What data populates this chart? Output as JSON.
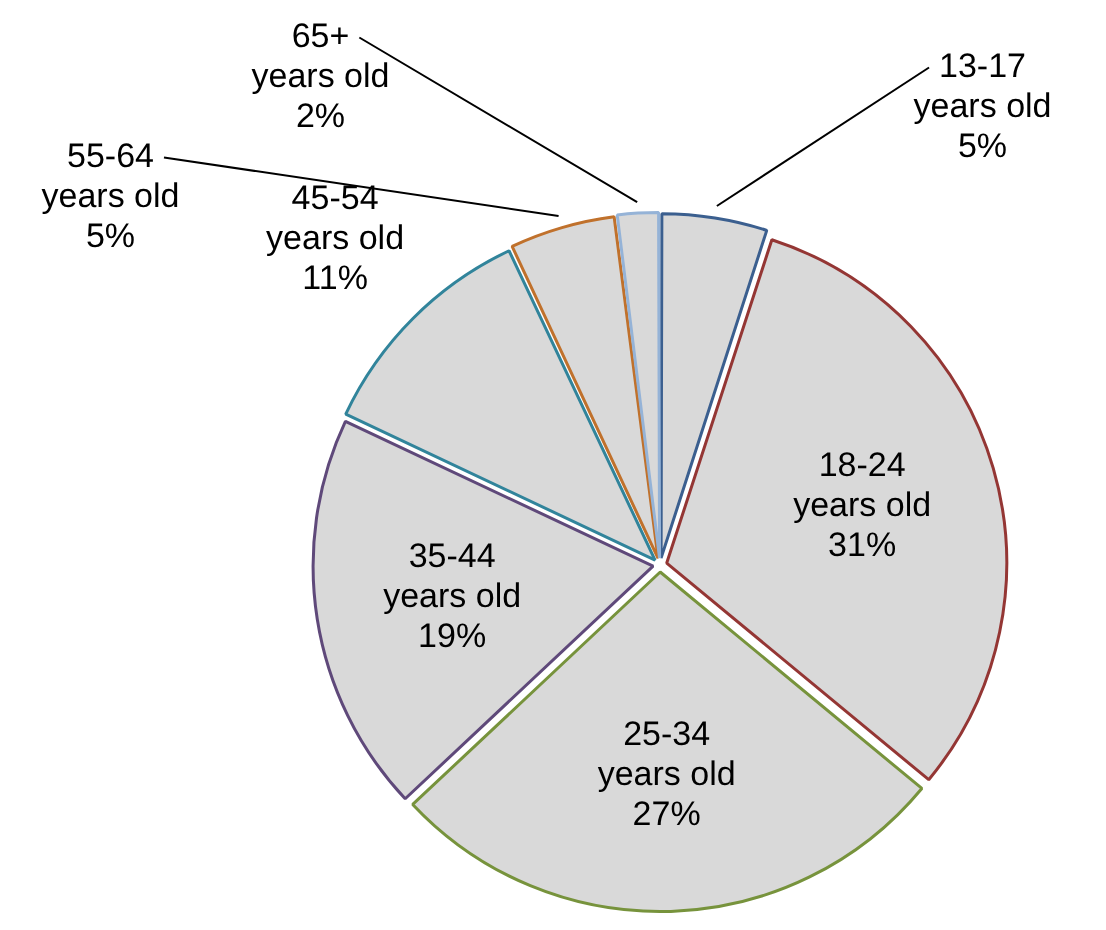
{
  "chart_data": {
    "type": "pie",
    "categories": [
      "13-17 years old",
      "18-24 years old",
      "25-34 years old",
      "35-44 years old",
      "45-54 years old",
      "55-64 years old",
      "65+ years old"
    ],
    "values": [
      5,
      31,
      27,
      19,
      11,
      5,
      2
    ],
    "value_labels": [
      "5%",
      "31%",
      "27%",
      "19%",
      "11%",
      "5%",
      "2%"
    ],
    "colors": [
      "#3b5f8f",
      "#943634",
      "#77933c",
      "#5f497a",
      "#31849b",
      "#c0712c",
      "#95b3d7"
    ],
    "legend": false
  }
}
